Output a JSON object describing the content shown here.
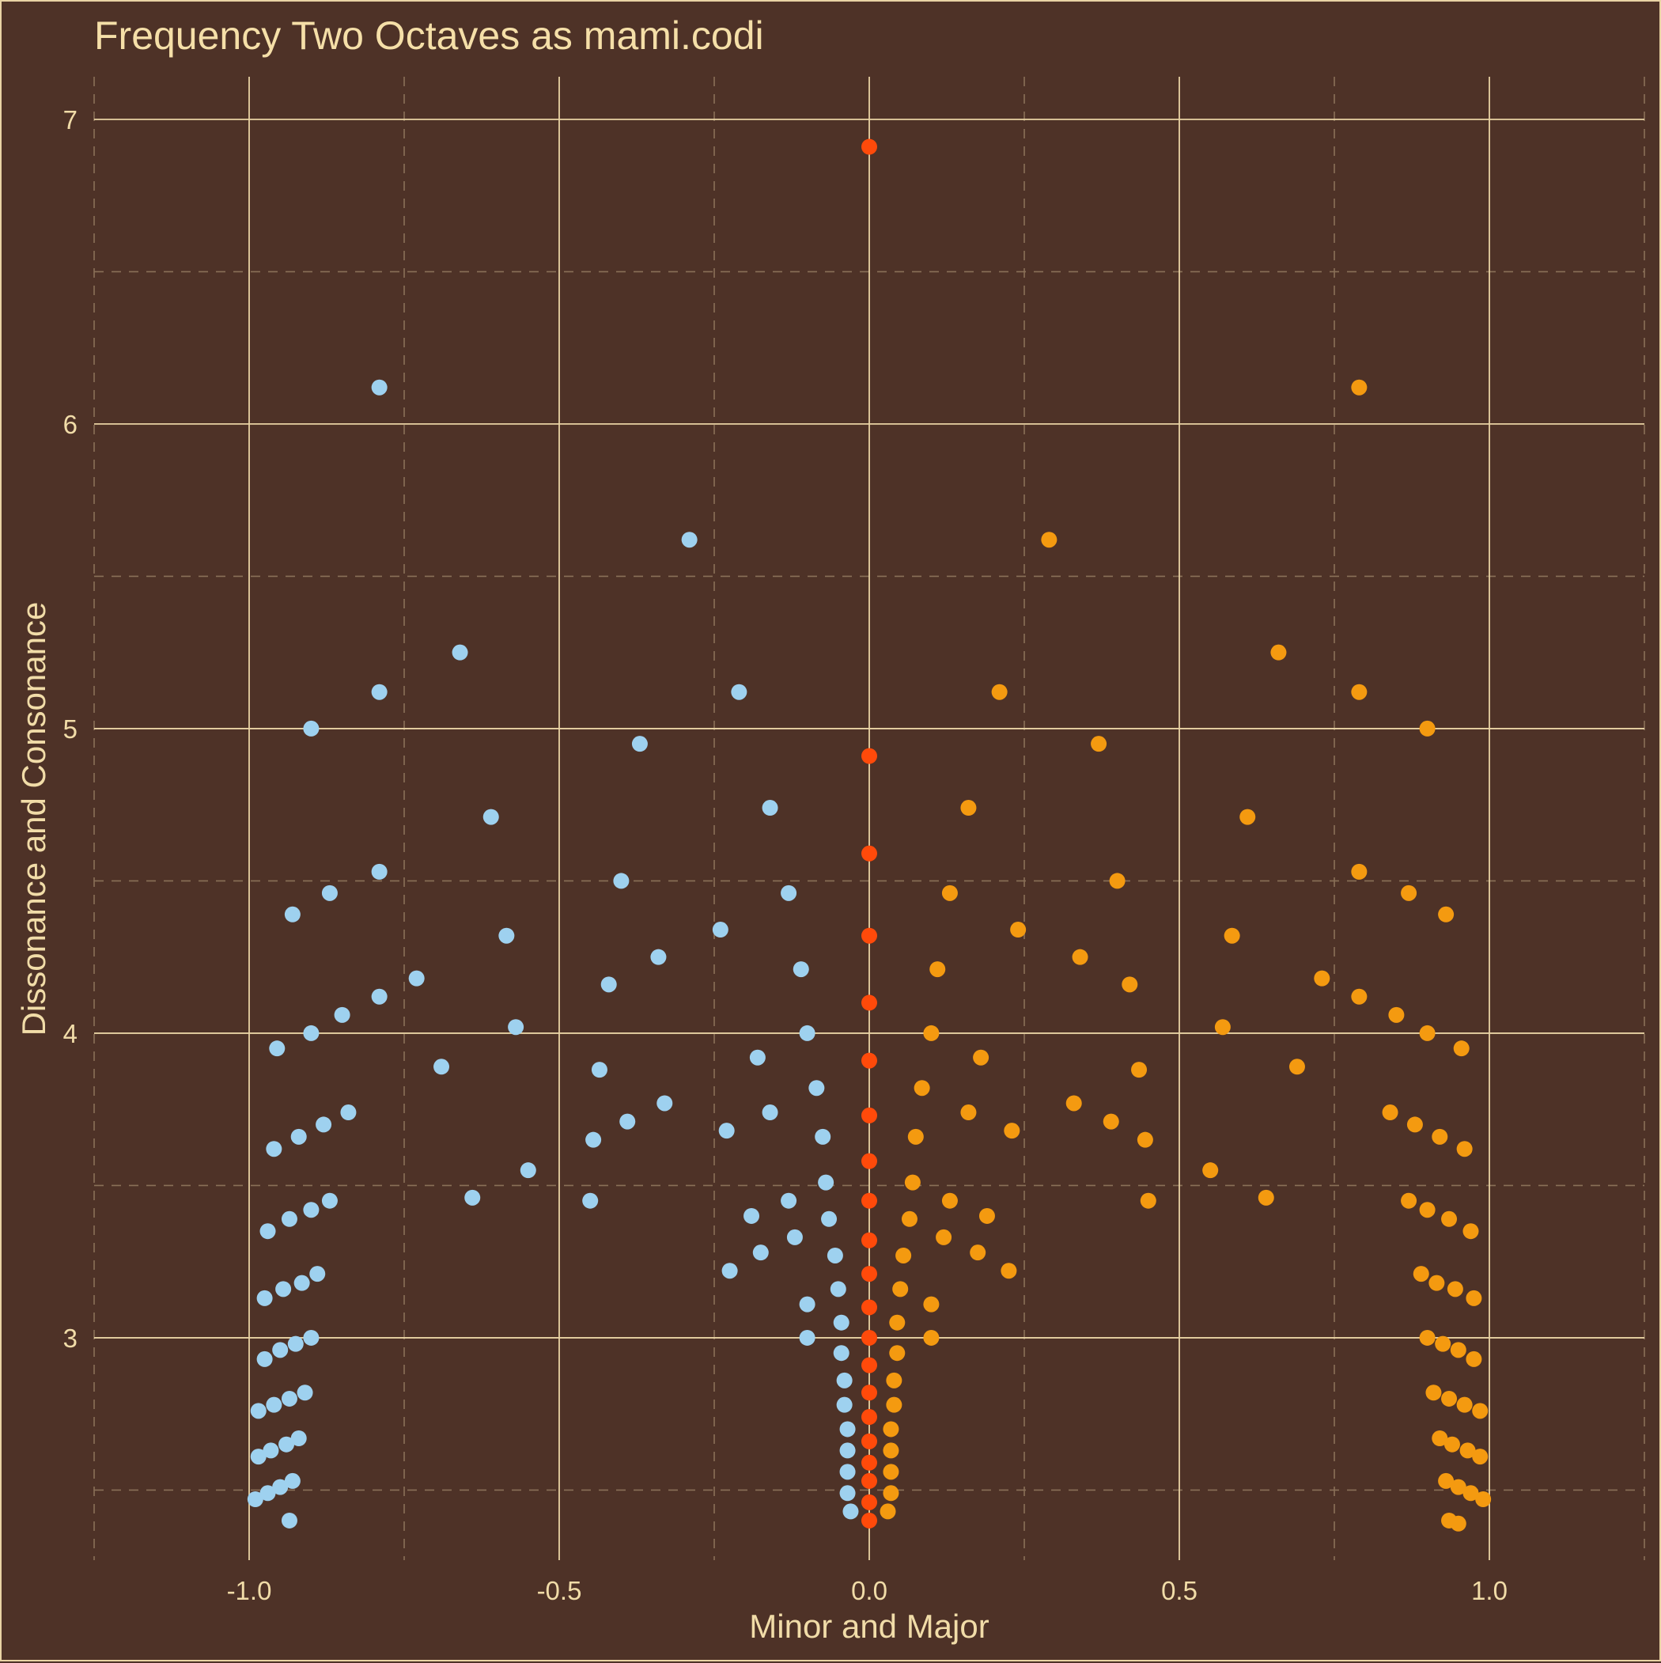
{
  "chart_data": {
    "type": "scatter",
    "title": "Frequency Two Octaves as mami.codi",
    "xlabel": "Minor and Major",
    "ylabel": "Dissonance and Consonance",
    "xlim": [
      -1.25,
      1.25
    ],
    "ylim": [
      2.27,
      7.14
    ],
    "x_ticks": [
      -1.0,
      -0.5,
      0.0,
      0.5,
      1.0
    ],
    "x_tick_labels": [
      "-1.0",
      "-0.5",
      "0.0",
      "0.5",
      "1.0"
    ],
    "y_ticks": [
      3,
      4,
      5,
      6,
      7
    ],
    "y_tick_labels": [
      "3",
      "4",
      "5",
      "6",
      "7"
    ],
    "grid": true,
    "legend": "none",
    "colors": {
      "background": "#4e3227",
      "grid_major": "#e9d3a4",
      "grid_minor": "#8a7058",
      "text": "#f1dca8",
      "minor_points": "#9ed1ef",
      "major_points": "#f49a10",
      "neutral_points": "#ff4a0a"
    },
    "series": [
      {
        "color": "#9ed1ef",
        "points": [
          [
            -0.79,
            6.12
          ],
          [
            -0.29,
            5.62
          ],
          [
            -0.66,
            5.25
          ],
          [
            -0.79,
            5.12
          ],
          [
            -0.21,
            5.12
          ],
          [
            -0.9,
            5.0
          ],
          [
            -0.37,
            4.95
          ],
          [
            -0.16,
            4.74
          ],
          [
            -0.61,
            4.71
          ],
          [
            -0.79,
            4.53
          ],
          [
            -0.4,
            4.5
          ],
          [
            -0.87,
            4.46
          ],
          [
            -0.13,
            4.46
          ],
          [
            -0.93,
            4.39
          ],
          [
            -0.24,
            4.34
          ],
          [
            -0.585,
            4.32
          ],
          [
            -0.34,
            4.25
          ],
          [
            -0.11,
            4.21
          ],
          [
            -0.73,
            4.18
          ],
          [
            -0.42,
            4.16
          ],
          [
            -0.79,
            4.12
          ],
          [
            -0.85,
            4.06
          ],
          [
            -0.57,
            4.02
          ],
          [
            -0.9,
            4.0
          ],
          [
            -0.1,
            4.0
          ],
          [
            -0.955,
            3.95
          ],
          [
            -0.18,
            3.92
          ],
          [
            -0.69,
            3.89
          ],
          [
            -0.435,
            3.88
          ],
          [
            -0.085,
            3.82
          ],
          [
            -0.33,
            3.77
          ],
          [
            -0.84,
            3.74
          ],
          [
            -0.16,
            3.74
          ],
          [
            -0.39,
            3.71
          ],
          [
            -0.88,
            3.7
          ],
          [
            -0.23,
            3.68
          ],
          [
            -0.92,
            3.66
          ],
          [
            -0.445,
            3.65
          ],
          [
            -0.075,
            3.66
          ],
          [
            -0.96,
            3.62
          ],
          [
            -0.55,
            3.55
          ],
          [
            -0.07,
            3.51
          ],
          [
            -0.87,
            3.45
          ],
          [
            -0.64,
            3.46
          ],
          [
            -0.45,
            3.45
          ],
          [
            -0.13,
            3.45
          ],
          [
            -0.9,
            3.42
          ],
          [
            -0.19,
            3.4
          ],
          [
            -0.935,
            3.39
          ],
          [
            -0.065,
            3.39
          ],
          [
            -0.97,
            3.35
          ],
          [
            -0.12,
            3.33
          ],
          [
            -0.175,
            3.28
          ],
          [
            -0.055,
            3.27
          ],
          [
            -0.225,
            3.22
          ],
          [
            -0.89,
            3.21
          ],
          [
            -0.915,
            3.18
          ],
          [
            -0.945,
            3.16
          ],
          [
            -0.975,
            3.13
          ],
          [
            -0.05,
            3.16
          ],
          [
            -0.1,
            3.11
          ],
          [
            -0.045,
            3.05
          ],
          [
            -0.1,
            3.0
          ],
          [
            -0.9,
            3.0
          ],
          [
            -0.925,
            2.98
          ],
          [
            -0.95,
            2.96
          ],
          [
            -0.975,
            2.93
          ],
          [
            -0.045,
            2.95
          ],
          [
            -0.04,
            2.86
          ],
          [
            -0.91,
            2.82
          ],
          [
            -0.935,
            2.8
          ],
          [
            -0.96,
            2.78
          ],
          [
            -0.985,
            2.76
          ],
          [
            -0.04,
            2.78
          ],
          [
            -0.035,
            2.7
          ],
          [
            -0.92,
            2.67
          ],
          [
            -0.94,
            2.65
          ],
          [
            -0.965,
            2.63
          ],
          [
            -0.985,
            2.61
          ],
          [
            -0.035,
            2.63
          ],
          [
            -0.035,
            2.56
          ],
          [
            -0.93,
            2.53
          ],
          [
            -0.95,
            2.51
          ],
          [
            -0.97,
            2.49
          ],
          [
            -0.99,
            2.47
          ],
          [
            -0.035,
            2.49
          ],
          [
            -0.03,
            2.43
          ],
          [
            -0.935,
            2.4
          ]
        ]
      },
      {
        "color": "#f49a10",
        "points": [
          [
            0.79,
            6.12
          ],
          [
            0.29,
            5.62
          ],
          [
            0.66,
            5.25
          ],
          [
            0.79,
            5.12
          ],
          [
            0.21,
            5.12
          ],
          [
            0.9,
            5.0
          ],
          [
            0.37,
            4.95
          ],
          [
            0.16,
            4.74
          ],
          [
            0.61,
            4.71
          ],
          [
            0.79,
            4.53
          ],
          [
            0.4,
            4.5
          ],
          [
            0.87,
            4.46
          ],
          [
            0.13,
            4.46
          ],
          [
            0.93,
            4.39
          ],
          [
            0.24,
            4.34
          ],
          [
            0.585,
            4.32
          ],
          [
            0.34,
            4.25
          ],
          [
            0.11,
            4.21
          ],
          [
            0.73,
            4.18
          ],
          [
            0.42,
            4.16
          ],
          [
            0.79,
            4.12
          ],
          [
            0.85,
            4.06
          ],
          [
            0.57,
            4.02
          ],
          [
            0.9,
            4.0
          ],
          [
            0.1,
            4.0
          ],
          [
            0.955,
            3.95
          ],
          [
            0.18,
            3.92
          ],
          [
            0.69,
            3.89
          ],
          [
            0.435,
            3.88
          ],
          [
            0.085,
            3.82
          ],
          [
            0.33,
            3.77
          ],
          [
            0.84,
            3.74
          ],
          [
            0.16,
            3.74
          ],
          [
            0.39,
            3.71
          ],
          [
            0.88,
            3.7
          ],
          [
            0.23,
            3.68
          ],
          [
            0.92,
            3.66
          ],
          [
            0.445,
            3.65
          ],
          [
            0.075,
            3.66
          ],
          [
            0.96,
            3.62
          ],
          [
            0.55,
            3.55
          ],
          [
            0.07,
            3.51
          ],
          [
            0.87,
            3.45
          ],
          [
            0.64,
            3.46
          ],
          [
            0.45,
            3.45
          ],
          [
            0.13,
            3.45
          ],
          [
            0.9,
            3.42
          ],
          [
            0.19,
            3.4
          ],
          [
            0.935,
            3.39
          ],
          [
            0.065,
            3.39
          ],
          [
            0.97,
            3.35
          ],
          [
            0.12,
            3.33
          ],
          [
            0.175,
            3.28
          ],
          [
            0.055,
            3.27
          ],
          [
            0.225,
            3.22
          ],
          [
            0.89,
            3.21
          ],
          [
            0.915,
            3.18
          ],
          [
            0.945,
            3.16
          ],
          [
            0.975,
            3.13
          ],
          [
            0.05,
            3.16
          ],
          [
            0.1,
            3.11
          ],
          [
            0.045,
            3.05
          ],
          [
            0.1,
            3.0
          ],
          [
            0.9,
            3.0
          ],
          [
            0.925,
            2.98
          ],
          [
            0.95,
            2.96
          ],
          [
            0.975,
            2.93
          ],
          [
            0.045,
            2.95
          ],
          [
            0.04,
            2.86
          ],
          [
            0.91,
            2.82
          ],
          [
            0.935,
            2.8
          ],
          [
            0.96,
            2.78
          ],
          [
            0.985,
            2.76
          ],
          [
            0.04,
            2.78
          ],
          [
            0.035,
            2.7
          ],
          [
            0.92,
            2.67
          ],
          [
            0.94,
            2.65
          ],
          [
            0.965,
            2.63
          ],
          [
            0.985,
            2.61
          ],
          [
            0.035,
            2.63
          ],
          [
            0.035,
            2.56
          ],
          [
            0.93,
            2.53
          ],
          [
            0.95,
            2.51
          ],
          [
            0.97,
            2.49
          ],
          [
            0.99,
            2.47
          ],
          [
            0.035,
            2.49
          ],
          [
            0.03,
            2.43
          ],
          [
            0.935,
            2.4
          ],
          [
            0.95,
            2.39
          ]
        ]
      },
      {
        "color": "#ff4a0a",
        "points": [
          [
            0,
            6.91
          ],
          [
            0,
            4.91
          ],
          [
            0,
            4.59
          ],
          [
            0,
            4.32
          ],
          [
            0,
            4.1
          ],
          [
            0,
            3.91
          ],
          [
            0,
            3.73
          ],
          [
            0,
            3.58
          ],
          [
            0,
            3.45
          ],
          [
            0,
            3.32
          ],
          [
            0,
            3.21
          ],
          [
            0,
            3.1
          ],
          [
            0,
            3.0
          ],
          [
            0,
            2.91
          ],
          [
            0,
            2.82
          ],
          [
            0,
            2.74
          ],
          [
            0,
            2.66
          ],
          [
            0,
            2.59
          ],
          [
            0,
            2.53
          ],
          [
            0,
            2.46
          ],
          [
            0,
            2.4
          ]
        ]
      }
    ]
  }
}
